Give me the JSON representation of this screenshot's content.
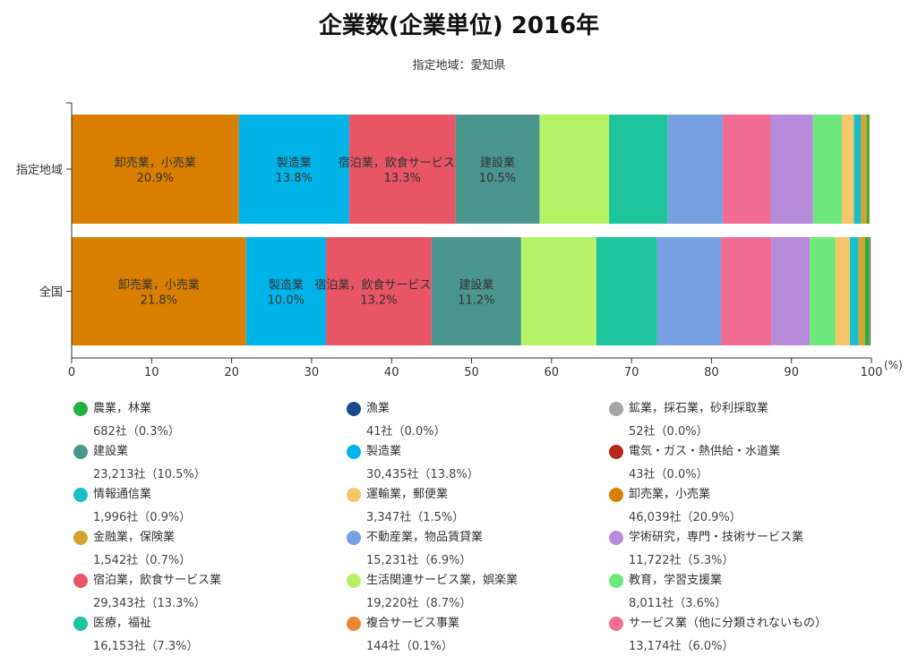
{
  "chart_data": {
    "type": "stacked-bar-horizontal",
    "title": "企業数(企業単位) 2016年",
    "subtitle": "指定地域：愛知県",
    "unit": "(%)",
    "xlim": [
      0,
      100
    ],
    "xticks": [
      "0",
      "10",
      "20",
      "30",
      "40",
      "50",
      "60",
      "70",
      "80",
      "90",
      "100"
    ],
    "categories": [
      "指定地域",
      "全国"
    ],
    "series": [
      {
        "name": "卸売業，小売業",
        "color": "#d97f00",
        "values": [
          20.9,
          21.8
        ]
      },
      {
        "name": "製造業",
        "color": "#00b4e8",
        "values": [
          13.8,
          10.0
        ]
      },
      {
        "name": "宿泊業，飲食サービス業",
        "color": "#e85566",
        "values": [
          13.3,
          13.2
        ]
      },
      {
        "name": "建設業",
        "color": "#4a968f",
        "values": [
          10.5,
          11.2
        ]
      },
      {
        "name": "生活関連サービス業，娯楽業",
        "color": "#b5f266",
        "values": [
          8.7,
          9.4
        ]
      },
      {
        "name": "医療，福祉",
        "color": "#1ec49b",
        "values": [
          7.3,
          7.6
        ]
      },
      {
        "name": "不動産業，物品賃貸業",
        "color": "#76a1e3",
        "values": [
          6.9,
          8.0
        ]
      },
      {
        "name": "サービス業（他に分類されないもの）",
        "color": "#f26d93",
        "values": [
          6.0,
          6.3
        ]
      },
      {
        "name": "学術研究，専門・技術サービス業",
        "color": "#b68bdb",
        "values": [
          5.3,
          4.8
        ]
      },
      {
        "name": "教育，学習支援業",
        "color": "#6ee87b",
        "values": [
          3.6,
          3.2
        ]
      },
      {
        "name": "運輸業，郵便業",
        "color": "#f7c66b",
        "values": [
          1.5,
          1.8
        ]
      },
      {
        "name": "情報通信業",
        "color": "#1bbfca",
        "values": [
          0.9,
          1.1
        ]
      },
      {
        "name": "金融業，保険業",
        "color": "#d4a431",
        "values": [
          0.7,
          0.8
        ]
      },
      {
        "name": "農業，林業",
        "color": "#20b040",
        "values": [
          0.3,
          0.5
        ]
      },
      {
        "name": "複合サービス事業",
        "color": "#ee8531",
        "values": [
          0.1,
          0.1
        ]
      },
      {
        "name": "鉱業，採石業，砂利採取業",
        "color": "#a6a6a6",
        "values": [
          0.0,
          0.0
        ]
      },
      {
        "name": "漁業",
        "color": "#1a4a8e",
        "values": [
          0.0,
          0.1
        ]
      },
      {
        "name": "電気・ガス・熱供給・水道業",
        "color": "#b8261e",
        "values": [
          0.0,
          0.0
        ]
      }
    ]
  },
  "legend": [
    {
      "name": "農業，林業",
      "value": "682社（0.3%）",
      "color": "#20b040"
    },
    {
      "name": "漁業",
      "value": "41社（0.0%）",
      "color": "#1a4a8e"
    },
    {
      "name": "鉱業，採石業，砂利採取業",
      "value": "52社（0.0%）",
      "color": "#a6a6a6"
    },
    {
      "name": "建設業",
      "value": "23,213社（10.5%）",
      "color": "#4a968f"
    },
    {
      "name": "製造業",
      "value": "30,435社（13.8%）",
      "color": "#00b4e8"
    },
    {
      "name": "電気・ガス・熱供給・水道業",
      "value": "43社（0.0%）",
      "color": "#b8261e"
    },
    {
      "name": "情報通信業",
      "value": "1,996社（0.9%）",
      "color": "#1bbfca"
    },
    {
      "name": "運輸業，郵便業",
      "value": "3,347社（1.5%）",
      "color": "#f7c66b"
    },
    {
      "name": "卸売業，小売業",
      "value": "46,039社（20.9%）",
      "color": "#d97f00"
    },
    {
      "name": "金融業，保険業",
      "value": "1,542社（0.7%）",
      "color": "#d4a431"
    },
    {
      "name": "不動産業，物品賃貸業",
      "value": "15,231社（6.9%）",
      "color": "#76a1e3"
    },
    {
      "name": "学術研究，専門・技術サービス業",
      "value": "11,722社（5.3%）",
      "color": "#b68bdb"
    },
    {
      "name": "宿泊業，飲食サービス業",
      "value": "29,343社（13.3%）",
      "color": "#e85566"
    },
    {
      "name": "生活関連サービス業，娯楽業",
      "value": "19,220社（8.7%）",
      "color": "#b5f266"
    },
    {
      "name": "教育，学習支援業",
      "value": "8,011社（3.6%）",
      "color": "#6ee87b"
    },
    {
      "name": "医療，福祉",
      "value": "16,153社（7.3%）",
      "color": "#1ec49b"
    },
    {
      "name": "複合サービス事業",
      "value": "144社（0.1%）",
      "color": "#ee8531"
    },
    {
      "name": "サービス業（他に分類されないもの）",
      "value": "13,174社（6.0%）",
      "color": "#f26d93"
    }
  ]
}
